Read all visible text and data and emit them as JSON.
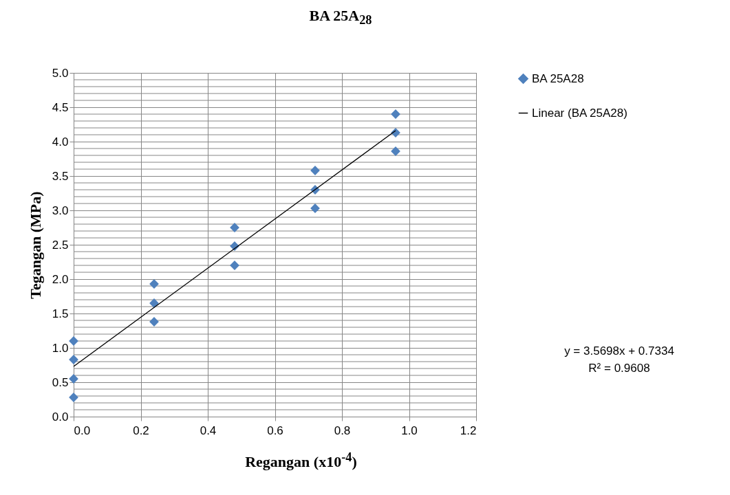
{
  "chart_data": {
    "type": "scatter",
    "title": "BA 25A$_{28}$",
    "xlabel": "Regangan (x10$^{-4}$)",
    "ylabel": "Tegangan (MPa)",
    "series": [
      {
        "name": "BA 25A28",
        "marker": "diamond",
        "color": "#4f81bd",
        "x": [
          0,
          0,
          0,
          0,
          0.24,
          0.24,
          0.24,
          0.48,
          0.48,
          0.48,
          0.72,
          0.72,
          0.72,
          0.96,
          0.96,
          0.96
        ],
        "values": [
          1.1,
          0.83,
          0.55,
          0.28,
          1.93,
          1.65,
          1.38,
          2.75,
          2.48,
          2.2,
          3.58,
          3.3,
          3.03,
          4.4,
          4.13,
          3.86
        ]
      },
      {
        "name": "Linear (BA 25A28)",
        "type": "line",
        "color": "#000000",
        "x": [
          0,
          0.96
        ],
        "values": [
          0.73,
          4.16
        ]
      }
    ],
    "grid": true,
    "legend": "right",
    "xlim": [
      0,
      1.2
    ],
    "xticks": [
      {
        "value": 0,
        "label": "0.0"
      },
      {
        "value": 0.2,
        "label": "0.2"
      },
      {
        "value": 0.4,
        "label": "0.4"
      },
      {
        "value": 0.6,
        "label": "0.6"
      },
      {
        "value": 0.8,
        "label": "0.8"
      },
      {
        "value": 1,
        "label": "1.0"
      },
      {
        "value": 1.2,
        "label": "1.2"
      }
    ],
    "ylim": [
      0,
      5
    ],
    "yticks": [
      {
        "value": 0,
        "label": "0.0"
      },
      {
        "value": 0.1,
        "label": null
      },
      {
        "value": 0.2,
        "label": null
      },
      {
        "value": 0.3,
        "label": null
      },
      {
        "value": 0.4,
        "label": null
      },
      {
        "value": 0.5,
        "label": "0.5"
      },
      {
        "value": 0.6,
        "label": null
      },
      {
        "value": 0.7,
        "label": null
      },
      {
        "value": 0.8,
        "label": null
      },
      {
        "value": 0.9,
        "label": null
      },
      {
        "value": 1,
        "label": "1.0"
      },
      {
        "value": 1.1,
        "label": null
      },
      {
        "value": 1.2,
        "label": null
      },
      {
        "value": 1.3,
        "label": null
      },
      {
        "value": 1.4,
        "label": null
      },
      {
        "value": 1.5,
        "label": "1.5"
      },
      {
        "value": 1.6,
        "label": null
      },
      {
        "value": 1.7,
        "label": null
      },
      {
        "value": 1.8,
        "label": null
      },
      {
        "value": 1.9,
        "label": null
      },
      {
        "value": 2,
        "label": "2.0"
      },
      {
        "value": 2.1,
        "label": null
      },
      {
        "value": 2.2,
        "label": null
      },
      {
        "value": 2.3,
        "label": null
      },
      {
        "value": 2.4,
        "label": null
      },
      {
        "value": 2.5,
        "label": "2.5"
      },
      {
        "value": 2.6,
        "label": null
      },
      {
        "value": 2.7,
        "label": null
      },
      {
        "value": 2.8,
        "label": null
      },
      {
        "value": 2.9,
        "label": null
      },
      {
        "value": 3,
        "label": "3.0"
      },
      {
        "value": 3.1,
        "label": null
      },
      {
        "value": 3.2,
        "label": null
      },
      {
        "value": 3.3,
        "label": null
      },
      {
        "value": 3.4,
        "label": null
      },
      {
        "value": 3.5,
        "label": "3.5"
      },
      {
        "value": 3.6,
        "label": null
      },
      {
        "value": 3.7,
        "label": null
      },
      {
        "value": 3.8,
        "label": null
      },
      {
        "value": 3.9,
        "label": null
      },
      {
        "value": 4,
        "label": "4.0"
      },
      {
        "value": 4.1,
        "label": null
      },
      {
        "value": 4.2,
        "label": null
      },
      {
        "value": 4.3,
        "label": null
      },
      {
        "value": 4.4,
        "label": null
      },
      {
        "value": 4.5,
        "label": "4.5"
      },
      {
        "value": 4.6,
        "label": null
      },
      {
        "value": 4.7,
        "label": null
      },
      {
        "value": 4.8,
        "label": null
      },
      {
        "value": 4.9,
        "label": null
      },
      {
        "value": 5,
        "label": "5.0"
      }
    ],
    "annotations": [
      "y = 3.5698x + 0.7334",
      "R² = 0.9608"
    ]
  }
}
